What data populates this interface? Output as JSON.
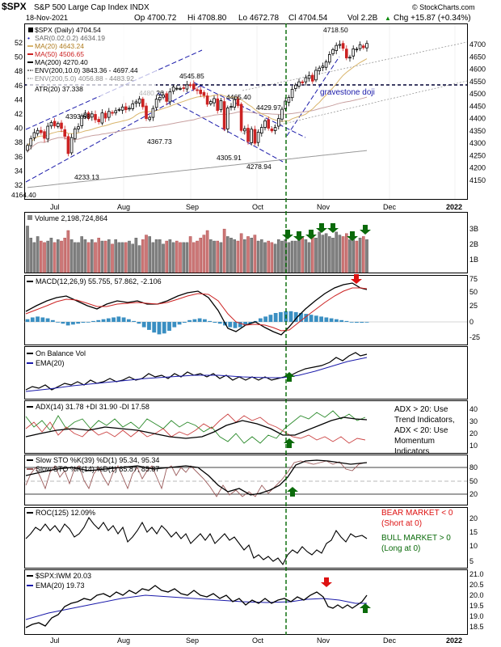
{
  "header": {
    "symbol": "$SPX",
    "name": "S&P 500 Large Cap Index INDX",
    "date": "18-Nov-2021",
    "open": "Op 4700.72",
    "high": "Hi 4708.80",
    "low": "Lo 4672.78",
    "close": "Cl 4704.54",
    "volume": "Vol 2.2B",
    "change": "Chg +15.87 (+0.34%)",
    "up_icon": "up-triangle-icon",
    "watermark": "© StockCharts.com"
  },
  "xaxis": {
    "labels": [
      "Jul",
      "Aug",
      "Sep",
      "Oct",
      "Nov",
      "Dec",
      "2022"
    ]
  },
  "colors": {
    "up": "#000000",
    "down": "#cc2222",
    "ma20": "#d9b56c",
    "ma50": "#c8a0a0",
    "ma200": "#999999",
    "channel": "#1a1aaa",
    "arrow_up": "#0a6a0a",
    "arrow_down": "#dd1111",
    "vline": "#006600"
  },
  "price_panel": {
    "legend": [
      "$SPX (Daily) 4704.54",
      "SAR(0.02,0.2) 4634.19",
      "MA(20) 4643.24",
      "MA(50) 4506.65",
      "MA(200) 4270.40",
      "ENV(200,10.0) 3843.36 - 4697.44",
      "ENV(200,5.0) 4056.88 - 4483.92",
      "ATR(20) 37.338"
    ],
    "left_ticks": [
      "52",
      "50",
      "48",
      "46",
      "44",
      "42",
      "40",
      "38",
      "36",
      "34",
      "32"
    ],
    "right_ticks": [
      "4700",
      "4650",
      "4600",
      "4550",
      "4500",
      "4450",
      "4400",
      "4350",
      "4300",
      "4250",
      "4200",
      "4150"
    ],
    "annotations": [
      "4718.50",
      "4545.85",
      "4480.26",
      "4465.40",
      "4429.97",
      "4393.68",
      "4367.73",
      "4305.91",
      "4278.94",
      "4233.13",
      "4164.40"
    ],
    "note": "gravestone doji"
  },
  "volume_panel": {
    "legend": "Volume 2,198,724,864",
    "ticks": [
      "3B",
      "2B",
      "1B"
    ]
  },
  "macd_panel": {
    "legend": "MACD(12,26,9) 55.755, 57.862, -2.106",
    "ticks": [
      "75",
      "50",
      "25",
      "0",
      "-25"
    ]
  },
  "obv_panel": {
    "legend": [
      "On Balance Vol",
      "EMA(20)"
    ]
  },
  "adx_panel": {
    "legend": "ADX(14) 31.78 +DI 31.90 -DI 17.58",
    "ticks": [
      "40",
      "30",
      "20",
      "10"
    ],
    "note": [
      "ADX > 20: Use",
      "Trend Indicators,",
      "ADX < 20: Use",
      "Momentum",
      "Indicators"
    ]
  },
  "sto_panel": {
    "legend1": "Slow STO %K(39) %D(1) 95.34, 95.34",
    "legend2": "Slow STO %K(14) %D(1) 85.87, 85.87",
    "ticks": [
      "80",
      "50",
      "20"
    ]
  },
  "roc_panel": {
    "legend": "ROC(125) 12.09%",
    "ticks": [
      "20",
      "15",
      "10",
      "5"
    ],
    "note_bear": [
      "BEAR MARKET < 0",
      "(Short at 0)"
    ],
    "note_bull": [
      "BULL MARKET > 0",
      "(Long at 0)"
    ]
  },
  "ratio_panel": {
    "legend": [
      "$SPX:IWM 20.03",
      "EMA(20) 19.73"
    ],
    "ticks": [
      "21.0",
      "20.5",
      "20.0",
      "19.5",
      "19.0",
      "18.5"
    ]
  },
  "chart_data": {
    "type": "line",
    "title": "$SPX S&P 500 Large Cap Index INDX",
    "date": "18-Nov-2021",
    "x_range": [
      "2021-06-29",
      "2022-01-03"
    ],
    "price": {
      "ylim": [
        4100,
        4750
      ],
      "close": [
        4291,
        4319,
        4343,
        4352,
        4343,
        4320,
        4369,
        4384,
        4370,
        4380,
        4360,
        4328,
        4258,
        4323,
        4358,
        4367,
        4411,
        4422,
        4401,
        4419,
        4395,
        4387,
        4423,
        4402,
        4429,
        4423,
        4432,
        4437,
        4447,
        4436,
        4442,
        4460,
        4468,
        4480,
        4448,
        4400,
        4405,
        4441,
        4479,
        4486,
        4496,
        4470,
        4509,
        4528,
        4523,
        4522,
        4524,
        4537,
        4536,
        4520,
        4515,
        4501,
        4494,
        4458,
        4469,
        4481,
        4433,
        4473,
        4358,
        4443,
        4449,
        4477,
        4453,
        4352,
        4359,
        4307,
        4357,
        4300,
        4345,
        4364,
        4391,
        4361,
        4350,
        4364,
        4400,
        4438,
        4471,
        4486,
        4519,
        4536,
        4549,
        4545,
        4566,
        4575,
        4552,
        4596,
        4605,
        4613,
        4630,
        4660,
        4680,
        4697,
        4701,
        4685,
        4646,
        4649,
        4683,
        4682,
        4700,
        4688,
        4705
      ],
      "ma20_end": 4643.24,
      "ma50_end": 4506.65,
      "ma200_end": 4270.4,
      "gravestone_doji_level": 4550
    },
    "volume": {
      "ylim": [
        0,
        3.5
      ],
      "unit": "B",
      "values": [
        3.1,
        2.3,
        2.0,
        2.4,
        2.1,
        2.0,
        2.1,
        2.3,
        2.0,
        2.2,
        2.1,
        2.3,
        2.8,
        2.2,
        2.0,
        2.0,
        2.4,
        2.2,
        2.0,
        2.2,
        2.0,
        2.3,
        2.1,
        2.1,
        2.2,
        1.9,
        2.2,
        2.0,
        2.0,
        2.0,
        2.1,
        1.9,
        2.3,
        1.8,
        2.2,
        2.5,
        2.4,
        2.0,
        2.2,
        2.2,
        1.9,
        2.1,
        2.2,
        2.0,
        2.1,
        2.0,
        2.0,
        2.0,
        2.4,
        2.0,
        2.1,
        2.3,
        2.5,
        2.8,
        2.2,
        2.1,
        2.1,
        2.0,
        2.9,
        2.4,
        2.3,
        2.2,
        2.1,
        2.6,
        2.2,
        2.4,
        2.3,
        2.5,
        2.1,
        2.2,
        2.0,
        2.1,
        2.0,
        1.9,
        2.2,
        2.1,
        2.2,
        2.0,
        2.1,
        2.1,
        2.3,
        2.4,
        2.2,
        2.0,
        2.4,
        2.3,
        2.7,
        2.5,
        2.6,
        2.4,
        2.3,
        2.7,
        2.5,
        2.4,
        2.6,
        2.2,
        2.2,
        2.1,
        2.3,
        2.4,
        2.2
      ]
    },
    "macd": {
      "ylim": [
        -40,
        85
      ],
      "macd_end": 55.755,
      "signal_end": 57.862,
      "histogram_end": -2.106
    },
    "adx": {
      "ylim": [
        5,
        45
      ],
      "adx_end": 31.78,
      "plus_di_end": 31.9,
      "minus_di_end": 17.58
    },
    "stochastics": {
      "ylim": [
        0,
        100
      ],
      "k39_end": 95.34,
      "k14_end": 85.87
    },
    "roc125": {
      "ylim": [
        0,
        23
      ],
      "end": 12.09
    },
    "spx_iwm": {
      "ylim": [
        18.3,
        21.1
      ],
      "ratio_end": 20.03,
      "ema20_end": 19.73
    },
    "signal_date_line": "2021-10-14"
  }
}
